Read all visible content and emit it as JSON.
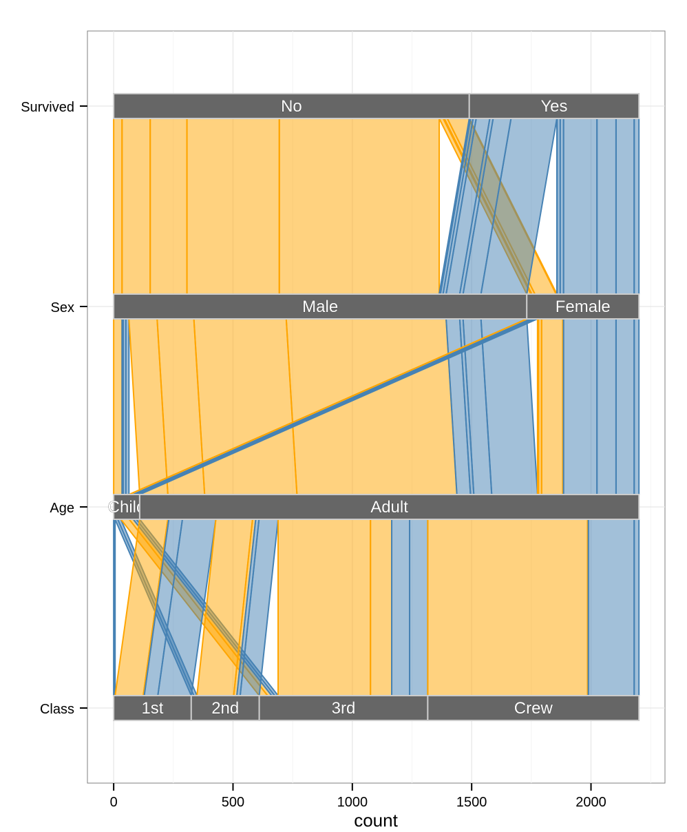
{
  "chart_data": {
    "type": "parallel-sets",
    "xlabel": "count",
    "xlim": [
      -110,
      2310
    ],
    "x_ticks": [
      "0",
      "500",
      "1000",
      "1500",
      "2000"
    ],
    "x_tick_values": [
      0,
      500,
      1000,
      1500,
      2000
    ],
    "axes": [
      "Survived",
      "Sex",
      "Age",
      "Class"
    ],
    "axis_levels": {
      "Survived": [
        {
          "label": "No",
          "count": 1490
        },
        {
          "label": "Yes",
          "count": 711
        }
      ],
      "Sex": [
        {
          "label": "Male",
          "count": 1731
        },
        {
          "label": "Female",
          "count": 470
        }
      ],
      "Age": [
        {
          "label": "Child",
          "count": 109
        },
        {
          "label": "Adult",
          "count": 2092
        }
      ],
      "Class": [
        {
          "label": "1st",
          "count": 325
        },
        {
          "label": "2nd",
          "count": 285
        },
        {
          "label": "3rd",
          "count": 706
        },
        {
          "label": "Crew",
          "count": 885
        }
      ]
    },
    "fill_variable": "Survived",
    "colors": {
      "No": "#FFA500",
      "Yes": "#4682B4"
    },
    "cells": [
      {
        "Class": "1st",
        "Sex": "Male",
        "Age": "Child",
        "Survived": "No",
        "count": 0
      },
      {
        "Class": "2nd",
        "Sex": "Male",
        "Age": "Child",
        "Survived": "No",
        "count": 0
      },
      {
        "Class": "3rd",
        "Sex": "Male",
        "Age": "Child",
        "Survived": "No",
        "count": 35
      },
      {
        "Class": "Crew",
        "Sex": "Male",
        "Age": "Child",
        "Survived": "No",
        "count": 0
      },
      {
        "Class": "1st",
        "Sex": "Female",
        "Age": "Child",
        "Survived": "No",
        "count": 0
      },
      {
        "Class": "2nd",
        "Sex": "Female",
        "Age": "Child",
        "Survived": "No",
        "count": 0
      },
      {
        "Class": "3rd",
        "Sex": "Female",
        "Age": "Child",
        "Survived": "No",
        "count": 17
      },
      {
        "Class": "Crew",
        "Sex": "Female",
        "Age": "Child",
        "Survived": "No",
        "count": 0
      },
      {
        "Class": "1st",
        "Sex": "Male",
        "Age": "Adult",
        "Survived": "No",
        "count": 118
      },
      {
        "Class": "2nd",
        "Sex": "Male",
        "Age": "Adult",
        "Survived": "No",
        "count": 154
      },
      {
        "Class": "3rd",
        "Sex": "Male",
        "Age": "Adult",
        "Survived": "No",
        "count": 387
      },
      {
        "Class": "Crew",
        "Sex": "Male",
        "Age": "Adult",
        "Survived": "No",
        "count": 670
      },
      {
        "Class": "1st",
        "Sex": "Female",
        "Age": "Adult",
        "Survived": "No",
        "count": 4
      },
      {
        "Class": "2nd",
        "Sex": "Female",
        "Age": "Adult",
        "Survived": "No",
        "count": 13
      },
      {
        "Class": "3rd",
        "Sex": "Female",
        "Age": "Adult",
        "Survived": "No",
        "count": 89
      },
      {
        "Class": "Crew",
        "Sex": "Female",
        "Age": "Adult",
        "Survived": "No",
        "count": 3
      },
      {
        "Class": "1st",
        "Sex": "Male",
        "Age": "Child",
        "Survived": "Yes",
        "count": 5
      },
      {
        "Class": "2nd",
        "Sex": "Male",
        "Age": "Child",
        "Survived": "Yes",
        "count": 11
      },
      {
        "Class": "3rd",
        "Sex": "Male",
        "Age": "Child",
        "Survived": "Yes",
        "count": 13
      },
      {
        "Class": "Crew",
        "Sex": "Male",
        "Age": "Child",
        "Survived": "Yes",
        "count": 0
      },
      {
        "Class": "1st",
        "Sex": "Female",
        "Age": "Child",
        "Survived": "Yes",
        "count": 1
      },
      {
        "Class": "2nd",
        "Sex": "Female",
        "Age": "Child",
        "Survived": "Yes",
        "count": 13
      },
      {
        "Class": "3rd",
        "Sex": "Female",
        "Age": "Child",
        "Survived": "Yes",
        "count": 14
      },
      {
        "Class": "Crew",
        "Sex": "Female",
        "Age": "Child",
        "Survived": "Yes",
        "count": 0
      },
      {
        "Class": "1st",
        "Sex": "Male",
        "Age": "Adult",
        "Survived": "Yes",
        "count": 57
      },
      {
        "Class": "2nd",
        "Sex": "Male",
        "Age": "Adult",
        "Survived": "Yes",
        "count": 14
      },
      {
        "Class": "3rd",
        "Sex": "Male",
        "Age": "Adult",
        "Survived": "Yes",
        "count": 75
      },
      {
        "Class": "Crew",
        "Sex": "Male",
        "Age": "Adult",
        "Survived": "Yes",
        "count": 192
      },
      {
        "Class": "1st",
        "Sex": "Female",
        "Age": "Adult",
        "Survived": "Yes",
        "count": 140
      },
      {
        "Class": "2nd",
        "Sex": "Female",
        "Age": "Adult",
        "Survived": "Yes",
        "count": 80
      },
      {
        "Class": "3rd",
        "Sex": "Female",
        "Age": "Adult",
        "Survived": "Yes",
        "count": 76
      },
      {
        "Class": "Crew",
        "Sex": "Female",
        "Age": "Adult",
        "Survived": "Yes",
        "count": 20
      }
    ],
    "grid": true,
    "legend": "none"
  }
}
